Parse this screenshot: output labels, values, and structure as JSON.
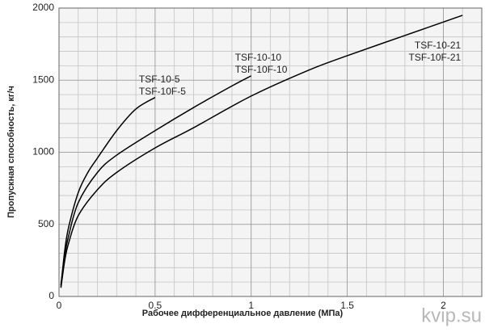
{
  "chart_data": {
    "type": "line",
    "x_label": "Рабочее дифференциальное давление (МПа)",
    "y_label": "Пропускная способность, кг/ч",
    "watermark": "kvip.su",
    "xlim": [
      0,
      2.2
    ],
    "ylim": [
      0,
      2000
    ],
    "xticks": [
      0,
      0.5,
      1,
      1.5,
      2
    ],
    "yticks": [
      0,
      500,
      1000,
      1500,
      2000
    ],
    "grid": true,
    "series": [
      {
        "labels": [
          "TSF-10-5",
          "TSF-10F-5"
        ],
        "color": "#000000",
        "x": [
          0.01,
          0.03,
          0.05,
          0.1,
          0.15,
          0.2,
          0.3,
          0.4,
          0.5
        ],
        "values": [
          70,
          320,
          480,
          720,
          860,
          960,
          1150,
          1300,
          1380
        ]
      },
      {
        "labels": [
          "TSF-10-10",
          "TSF-10F-10"
        ],
        "color": "#000000",
        "x": [
          0.01,
          0.03,
          0.05,
          0.1,
          0.2,
          0.3,
          0.5,
          0.7,
          0.9,
          1.0
        ],
        "values": [
          80,
          290,
          420,
          650,
          860,
          980,
          1150,
          1310,
          1460,
          1530
        ]
      },
      {
        "labels": [
          "TSF-10-21",
          "TSF-10F-21"
        ],
        "color": "#000000",
        "x": [
          0.01,
          0.03,
          0.05,
          0.1,
          0.2,
          0.3,
          0.5,
          0.7,
          1.0,
          1.3,
          1.5,
          1.8,
          2.1
        ],
        "values": [
          60,
          250,
          370,
          560,
          740,
          860,
          1030,
          1170,
          1390,
          1570,
          1670,
          1810,
          1950
        ]
      }
    ]
  }
}
